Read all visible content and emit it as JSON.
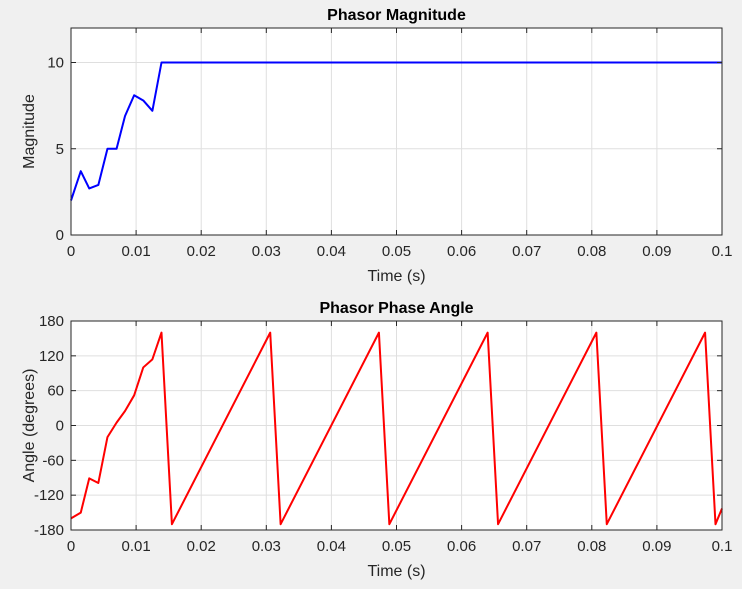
{
  "chart_data": [
    {
      "type": "line",
      "title": "Phasor Magnitude",
      "xlabel": "Time (s)",
      "ylabel": "Magnitude",
      "xlim": [
        0,
        0.1
      ],
      "ylim": [
        0,
        12
      ],
      "xticks": [
        0,
        0.01,
        0.02,
        0.03,
        0.04,
        0.05,
        0.06,
        0.07,
        0.08,
        0.09,
        0.1
      ],
      "xtick_labels": [
        "0",
        "0.01",
        "0.02",
        "0.03",
        "0.04",
        "0.05",
        "0.06",
        "0.07",
        "0.08",
        "0.09",
        "0.1"
      ],
      "yticks": [
        0,
        5,
        10
      ],
      "ytick_labels": [
        "0",
        "5",
        "10"
      ],
      "grid": true,
      "series": [
        {
          "color": "#0000ff",
          "x": [
            0,
            0.0015,
            0.0028,
            0.0042,
            0.0056,
            0.007,
            0.0083,
            0.0097,
            0.0111,
            0.0125,
            0.0139,
            0.015,
            0.02,
            0.03,
            0.04,
            0.05,
            0.06,
            0.07,
            0.08,
            0.09,
            0.1
          ],
          "y": [
            2.0,
            3.7,
            2.7,
            2.9,
            5.0,
            5.0,
            6.9,
            8.1,
            7.8,
            7.2,
            10.0,
            10.0,
            10.0,
            10.0,
            10.0,
            10.0,
            10.0,
            10.0,
            10.0,
            10.0,
            10.0
          ]
        }
      ]
    },
    {
      "type": "line",
      "title": "Phasor Phase Angle",
      "xlabel": "Time (s)",
      "ylabel": "Angle (degrees)",
      "xlim": [
        0,
        0.1
      ],
      "ylim": [
        -180,
        180
      ],
      "xticks": [
        0,
        0.01,
        0.02,
        0.03,
        0.04,
        0.05,
        0.06,
        0.07,
        0.08,
        0.09,
        0.1
      ],
      "xtick_labels": [
        "0",
        "0.01",
        "0.02",
        "0.03",
        "0.04",
        "0.05",
        "0.06",
        "0.07",
        "0.08",
        "0.09",
        "0.1"
      ],
      "yticks": [
        -180,
        -120,
        -60,
        0,
        60,
        120,
        180
      ],
      "ytick_labels": [
        "-180",
        "-120",
        "-60",
        "0",
        "60",
        "120",
        "180"
      ],
      "grid": true,
      "series": [
        {
          "color": "#ff0000",
          "x": [
            0,
            0.0015,
            0.0028,
            0.0042,
            0.0056,
            0.007,
            0.0083,
            0.0097,
            0.0111,
            0.0125,
            0.0139,
            0.0155,
            0.0306,
            0.0322,
            0.0473,
            0.0489,
            0.064,
            0.0656,
            0.0807,
            0.0823,
            0.0974,
            0.099,
            0.1
          ],
          "y": [
            -160,
            -150,
            -91,
            -99,
            -20,
            5,
            25,
            52,
            100,
            114,
            160,
            -170,
            160,
            -170,
            160,
            -170,
            160,
            -170,
            160,
            -170,
            160,
            -170,
            -143
          ]
        }
      ]
    }
  ]
}
